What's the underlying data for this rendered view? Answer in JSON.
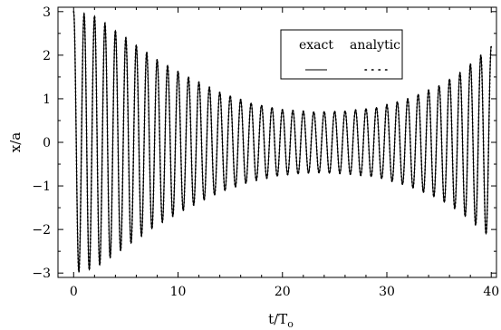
{
  "chart_data": {
    "type": "line",
    "xlabel": "t/T",
    "xlabel_subscript": "o",
    "ylabel": "x/a",
    "xlim": [
      -1.5,
      40.5
    ],
    "ylim": [
      -3.1,
      3.1
    ],
    "x_ticks": [
      0,
      10,
      20,
      30,
      40
    ],
    "x_tick_labels": [
      "0",
      "10",
      "20",
      "30",
      "40"
    ],
    "y_ticks": [
      -3,
      -2,
      -1,
      0,
      1,
      2,
      3
    ],
    "y_tick_labels": [
      "−3",
      "−2",
      "−1",
      "0",
      "1",
      "2",
      "3"
    ],
    "grid": false,
    "legend_position": "top-right",
    "series": [
      {
        "name": "exact",
        "style": "solid",
        "color": "#000000"
      },
      {
        "name": "analytic",
        "style": "dotted",
        "color": "#000000"
      }
    ],
    "oscillation": {
      "period": 1.0,
      "t_start": 0,
      "t_end": 40,
      "envelope": {
        "t": [
          0,
          2,
          5,
          8,
          11,
          14,
          17,
          20,
          23,
          26,
          29,
          32,
          35,
          37,
          39,
          40
        ],
        "amplitude": [
          3.0,
          2.9,
          2.4,
          1.9,
          1.5,
          1.15,
          0.9,
          0.75,
          0.7,
          0.72,
          0.8,
          1.0,
          1.3,
          1.6,
          2.0,
          2.2
        ]
      }
    }
  }
}
